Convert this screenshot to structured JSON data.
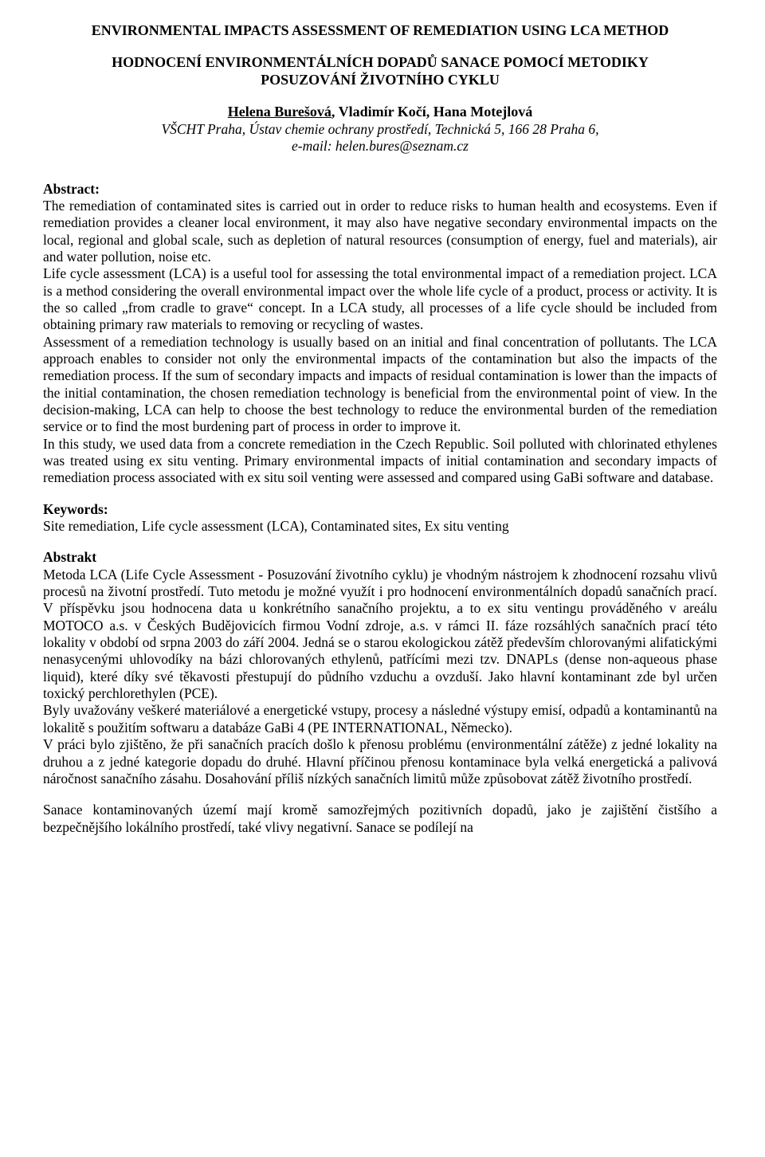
{
  "title_en": "ENVIRONMENTAL IMPACTS ASSESSMENT OF REMEDIATION USING LCA METHOD",
  "subtitle_cz_line1": "HODNOCENÍ ENVIRONMENTÁLNÍCH DOPADŮ SANACE POMOCÍ METODIKY",
  "subtitle_cz_line2": "POSUZOVÁNÍ ŽIVOTNÍHO CYKLU",
  "author_main": "Helena Burešová",
  "authors_rest": ", Vladimír Kočí, Hana Motejlová",
  "affiliation_line1": "VŠCHT Praha, Ústav chemie ochrany prostředí, Technická 5, 166 28 Praha 6,",
  "affiliation_line2": "e-mail: helen.bures@seznam.cz",
  "abstract_heading": "Abstract:",
  "abstract_body": "The remediation of contaminated sites is carried out in order to reduce risks to human health and ecosystems. Even if remediation provides a cleaner local environment, it may also have negative secondary environmental impacts on the local, regional and global scale, such as depletion of natural resources (consumption of energy, fuel and materials), air and water pollution, noise etc.\nLife cycle assessment (LCA) is a useful tool for assessing the total environmental impact of a remediation project. LCA is a method considering the overall environmental impact over the whole life cycle of a product, process or activity. It is the so called „from cradle to grave“ concept. In a LCA study, all processes of a life cycle should be included from obtaining primary raw materials to removing or recycling of wastes.\nAssessment of a remediation technology is usually based on an initial and final concentration of pollutants. The LCA approach enables to consider not only the environmental impacts of the contamination but also the impacts of the remediation process. If the sum of secondary impacts and impacts of residual contamination is lower than the impacts of the initial contamination, the chosen remediation technology is beneficial from the environmental point of view. In the decision-making, LCA can help to choose the best technology to reduce the environmental burden of the remediation service or to find the most burdening part of process in order to improve it.\nIn this study, we used data from a concrete remediation in the Czech Republic. Soil polluted with chlorinated ethylenes was treated using ex situ venting.  Primary environmental impacts of initial contamination and secondary impacts of remediation process associated with ex situ soil venting were assessed and compared using GaBi software and database.",
  "keywords_heading": "Keywords:",
  "keywords_body": "Site remediation, Life cycle assessment (LCA), Contaminated sites, Ex situ venting",
  "abstrakt_heading": "Abstrakt",
  "abstrakt_body": "Metoda LCA (Life Cycle Assessment - Posuzování životního cyklu) je vhodným nástrojem k zhodnocení rozsahu vlivů procesů na životní prostředí. Tuto metodu je možné využít i pro hodnocení environmentálních dopadů sanačních prací. V příspěvku jsou hodnocena data u konkrétního sanačního projektu, a to ex situ ventingu prováděného v areálu MOTOCO a.s. v Českých Budějovicích firmou Vodní zdroje, a.s. v rámci II. fáze rozsáhlých sanačních prací této lokality v období od srpna 2003 do září 2004. Jedná se o starou ekologickou zátěž především chlorovanými alifatickými nenasycenými uhlovodíky na bázi chlorovaných ethylenů, patřícími mezi tzv. DNAPLs (dense non-aqueous phase liquid), které díky své těkavosti přestupují do půdního vzduchu a ovzduší. Jako hlavní kontaminant zde byl určen toxický perchlorethylen (PCE).\nByly uvažovány veškeré materiálové a energetické vstupy, procesy a následné výstupy emisí, odpadů a kontaminantů na lokalitě s použitím softwaru a databáze GaBi 4 (PE INTERNATIONAL, Německo).\nV práci bylo zjištěno, že při sanačních pracích došlo k přenosu problému (environmentální zátěže) z jedné lokality na druhou a z jedné kategorie dopadu do druhé. Hlavní příčinou přenosu kontaminace byla velká energetická a palivová náročnost sanačního zásahu. Dosahování příliš nízkých sanačních limitů může způsobovat zátěž životního prostředí.",
  "final_paragraph": "Sanace kontaminovaných území mají kromě samozřejmých pozitivních dopadů, jako je zajištění čistšího a bezpečnějšího lokálního prostředí, také vlivy negativní. Sanace se podílejí na"
}
